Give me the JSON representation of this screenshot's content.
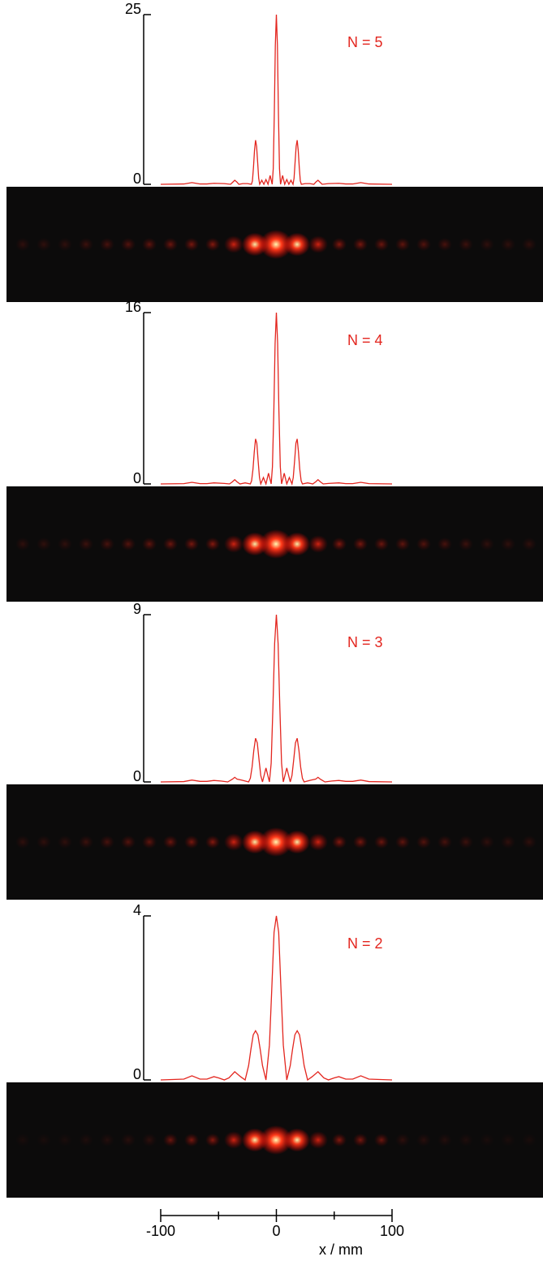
{
  "chart_data": [
    {
      "type": "line",
      "annotation": "N = 5",
      "color": "#e3261f",
      "xlim": [
        -100,
        100
      ],
      "ylim": [
        0,
        25
      ],
      "yticks": [
        0,
        25
      ],
      "x": [
        -100,
        -80,
        -73,
        -66,
        -60,
        -54,
        -45,
        -39.6,
        -37.8,
        -36,
        -34.2,
        -32.4,
        -29,
        -25,
        -21.6,
        -20.7,
        -19.8,
        -18.9,
        -18,
        -17.1,
        -16.2,
        -15.3,
        -14.4,
        -12.6,
        -10.8,
        -9,
        -7.2,
        -5.4,
        -3.6,
        -2.7,
        -1.8,
        -0.9,
        0,
        0.9,
        1.8,
        2.7,
        3.6,
        5.4,
        7.2,
        9,
        10.8,
        12.6,
        14.4,
        15.3,
        16.2,
        17.1,
        18,
        18.9,
        19.8,
        20.7,
        21.6,
        25,
        29,
        32.4,
        34.2,
        36,
        37.8,
        39.6,
        45,
        54,
        60,
        66,
        73,
        80,
        100
      ],
      "values": [
        0,
        0.05,
        0.25,
        0.05,
        0.05,
        0.15,
        0.1,
        0,
        0.3,
        0.6,
        0.35,
        0,
        0.1,
        0.1,
        0,
        0.5,
        2.5,
        5,
        6.5,
        5.6,
        3.3,
        0.9,
        0,
        0.6,
        0,
        0.7,
        0,
        1.3,
        0,
        2.3,
        10.3,
        20.5,
        25,
        20.5,
        10.3,
        2.3,
        0,
        1.3,
        0,
        0.7,
        0,
        0.6,
        0,
        0.9,
        3.3,
        5.6,
        6.5,
        5,
        2.5,
        0.5,
        0,
        0.1,
        0.1,
        0,
        0.35,
        0.6,
        0.3,
        0,
        0.1,
        0.15,
        0.05,
        0.05,
        0.25,
        0.05,
        0
      ]
    },
    {
      "type": "line",
      "annotation": "N = 4",
      "color": "#e3261f",
      "xlim": [
        -100,
        100
      ],
      "ylim": [
        0,
        16
      ],
      "yticks": [
        0,
        16
      ],
      "x": [
        -100,
        -80,
        -73,
        -66,
        -60,
        -54,
        -45,
        -40.5,
        -38,
        -36,
        -34,
        -31.5,
        -27,
        -22.5,
        -21.4,
        -20.2,
        -19.1,
        -18,
        -16.9,
        -15.8,
        -14.6,
        -13.5,
        -11.2,
        -9,
        -6.8,
        -4.5,
        -3.4,
        -2.2,
        -1.1,
        0,
        1.1,
        2.2,
        3.4,
        4.5,
        6.8,
        9,
        11.2,
        13.5,
        14.6,
        15.8,
        16.9,
        18,
        19.1,
        20.2,
        21.4,
        22.5,
        27,
        31.5,
        34,
        36,
        38,
        40.5,
        45,
        54,
        60,
        66,
        73,
        80,
        100
      ],
      "values": [
        0,
        0.03,
        0.15,
        0.03,
        0.03,
        0.1,
        0.05,
        0,
        0.2,
        0.4,
        0.2,
        0,
        0.1,
        0,
        0.3,
        1.4,
        3,
        4.2,
        3.8,
        2.2,
        0.6,
        0,
        0.6,
        0,
        1,
        0,
        1.6,
        6.8,
        13.1,
        16,
        13.1,
        6.8,
        1.6,
        0,
        1,
        0,
        0.6,
        0,
        0.6,
        2.2,
        3.8,
        4.2,
        3,
        1.4,
        0.3,
        0,
        0.1,
        0,
        0.2,
        0.4,
        0.2,
        0,
        0.05,
        0.1,
        0.03,
        0.03,
        0.15,
        0.03,
        0
      ]
    },
    {
      "type": "line",
      "annotation": "N = 3",
      "color": "#e3261f",
      "xlim": [
        -100,
        100
      ],
      "ylim": [
        0,
        9
      ],
      "yticks": [
        0,
        9
      ],
      "x": [
        -100,
        -80,
        -73,
        -66,
        -60,
        -54,
        -48,
        -42,
        -38,
        -36,
        -34,
        -30,
        -24,
        -22.5,
        -21,
        -19.5,
        -18,
        -16.5,
        -15,
        -13.5,
        -12,
        -9,
        -6,
        -4.5,
        -3,
        -1.5,
        0,
        1.5,
        3,
        4.5,
        6,
        9,
        12,
        13.5,
        15,
        16.5,
        18,
        19.5,
        21,
        22.5,
        24,
        30,
        34,
        36,
        38,
        42,
        48,
        54,
        60,
        66,
        73,
        80,
        100
      ],
      "values": [
        0,
        0.02,
        0.1,
        0.03,
        0.03,
        0.08,
        0.05,
        0,
        0.15,
        0.25,
        0.15,
        0.1,
        0,
        0.2,
        0.8,
        1.7,
        2.35,
        2.1,
        1.2,
        0.35,
        0,
        0.75,
        0,
        1,
        4,
        7.45,
        9,
        7.45,
        4,
        1,
        0,
        0.75,
        0,
        0.35,
        1.2,
        2.1,
        2.35,
        1.7,
        0.8,
        0.2,
        0,
        0.1,
        0.15,
        0.25,
        0.15,
        0,
        0.05,
        0.08,
        0.03,
        0.03,
        0.1,
        0.02,
        0
      ]
    },
    {
      "type": "line",
      "annotation": "N = 2",
      "color": "#e3261f",
      "xlim": [
        -100,
        100
      ],
      "ylim": [
        0,
        4
      ],
      "yticks": [
        0,
        4
      ],
      "x": [
        -100,
        -80,
        -73,
        -66,
        -60,
        -54,
        -50,
        -45,
        -41,
        -36,
        -31,
        -27,
        -24,
        -22,
        -20,
        -18,
        -16,
        -14,
        -12,
        -9,
        -6,
        -4,
        -2,
        0,
        2,
        4,
        6,
        9,
        12,
        14,
        16,
        18,
        20,
        22,
        24,
        27,
        31,
        36,
        41,
        45,
        50,
        54,
        60,
        66,
        73,
        80,
        100
      ],
      "values": [
        0,
        0.02,
        0.1,
        0.02,
        0.02,
        0.08,
        0.05,
        0,
        0.05,
        0.2,
        0.08,
        0,
        0.35,
        0.75,
        1.1,
        1.2,
        1.1,
        0.75,
        0.35,
        0,
        0.85,
        2.2,
        3.6,
        4,
        3.6,
        2.2,
        0.85,
        0,
        0.35,
        0.75,
        1.1,
        1.2,
        1.1,
        0.75,
        0.35,
        0,
        0.08,
        0.2,
        0.05,
        0,
        0.05,
        0.08,
        0.02,
        0.02,
        0.1,
        0.02,
        0
      ]
    }
  ],
  "x_axis": {
    "label": "x / mm",
    "xlim": [
      -100,
      100
    ],
    "xticks": [
      -100,
      0,
      100
    ],
    "minor_xticks": [
      -50,
      50
    ]
  }
}
